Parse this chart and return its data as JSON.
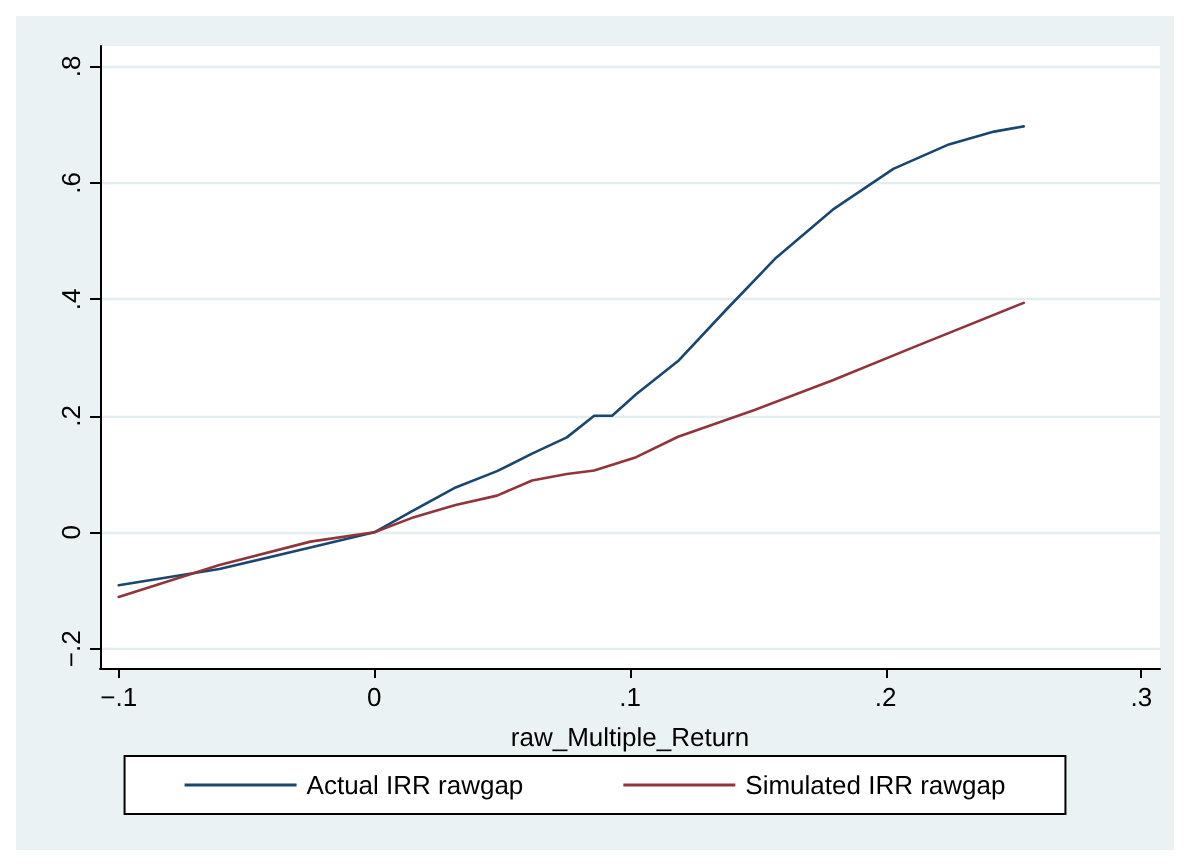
{
  "chart_data": {
    "type": "line",
    "xlabel": "raw_Multiple_Return",
    "xlim": [
      -0.1073,
      0.3073
    ],
    "xticks": [
      {
        "value": -0.1,
        "label": "−.1"
      },
      {
        "value": 0,
        "label": "0"
      },
      {
        "value": 0.1,
        "label": ".1"
      },
      {
        "value": 0.2,
        "label": ".2"
      },
      {
        "value": 0.3,
        "label": ".3"
      }
    ],
    "ylim": [
      -0.233,
      0.835
    ],
    "yticks": [
      {
        "value": -0.2,
        "label": "−.2"
      },
      {
        "value": 0,
        "label": "0"
      },
      {
        "value": 0.2,
        "label": ".2"
      },
      {
        "value": 0.4,
        "label": ".4"
      },
      {
        "value": 0.6,
        "label": ".6"
      },
      {
        "value": 0.8,
        "label": ".8"
      }
    ],
    "grid": "y",
    "legend": "bottom",
    "marker": "none",
    "line_style": "solid",
    "series": [
      {
        "name": "Actual IRR rawgap",
        "color": "#1a476f",
        "x": [
          -0.1,
          -0.0606,
          -0.025,
          0,
          0.0155,
          0.0318,
          0.048,
          0.0617,
          0.0753,
          0.086,
          0.093,
          0.1024,
          0.1188,
          0.1378,
          0.1568,
          0.1793,
          0.203,
          0.2247,
          0.2424,
          0.254
        ],
        "values": [
          -0.091,
          -0.063,
          -0.026,
          0,
          0.038,
          0.077,
          0.105,
          0.135,
          0.163,
          0.2,
          0.2,
          0.237,
          0.294,
          0.383,
          0.47,
          0.554,
          0.624,
          0.666,
          0.688,
          0.697
        ]
      },
      {
        "name": "Simulated IRR rawgap",
        "color": "#90353b",
        "x": [
          -0.1,
          -0.0606,
          -0.025,
          0,
          0.0155,
          0.0318,
          0.048,
          0.0617,
          0.0753,
          0.086,
          0.1024,
          0.1188,
          0.1487,
          0.1793,
          0.211,
          0.254
        ],
        "values": [
          -0.111,
          -0.056,
          -0.016,
          0,
          0.026,
          0.047,
          0.063,
          0.089,
          0.1,
          0.106,
          0.129,
          0.164,
          0.21,
          0.261,
          0.318,
          0.394
        ]
      }
    ]
  }
}
